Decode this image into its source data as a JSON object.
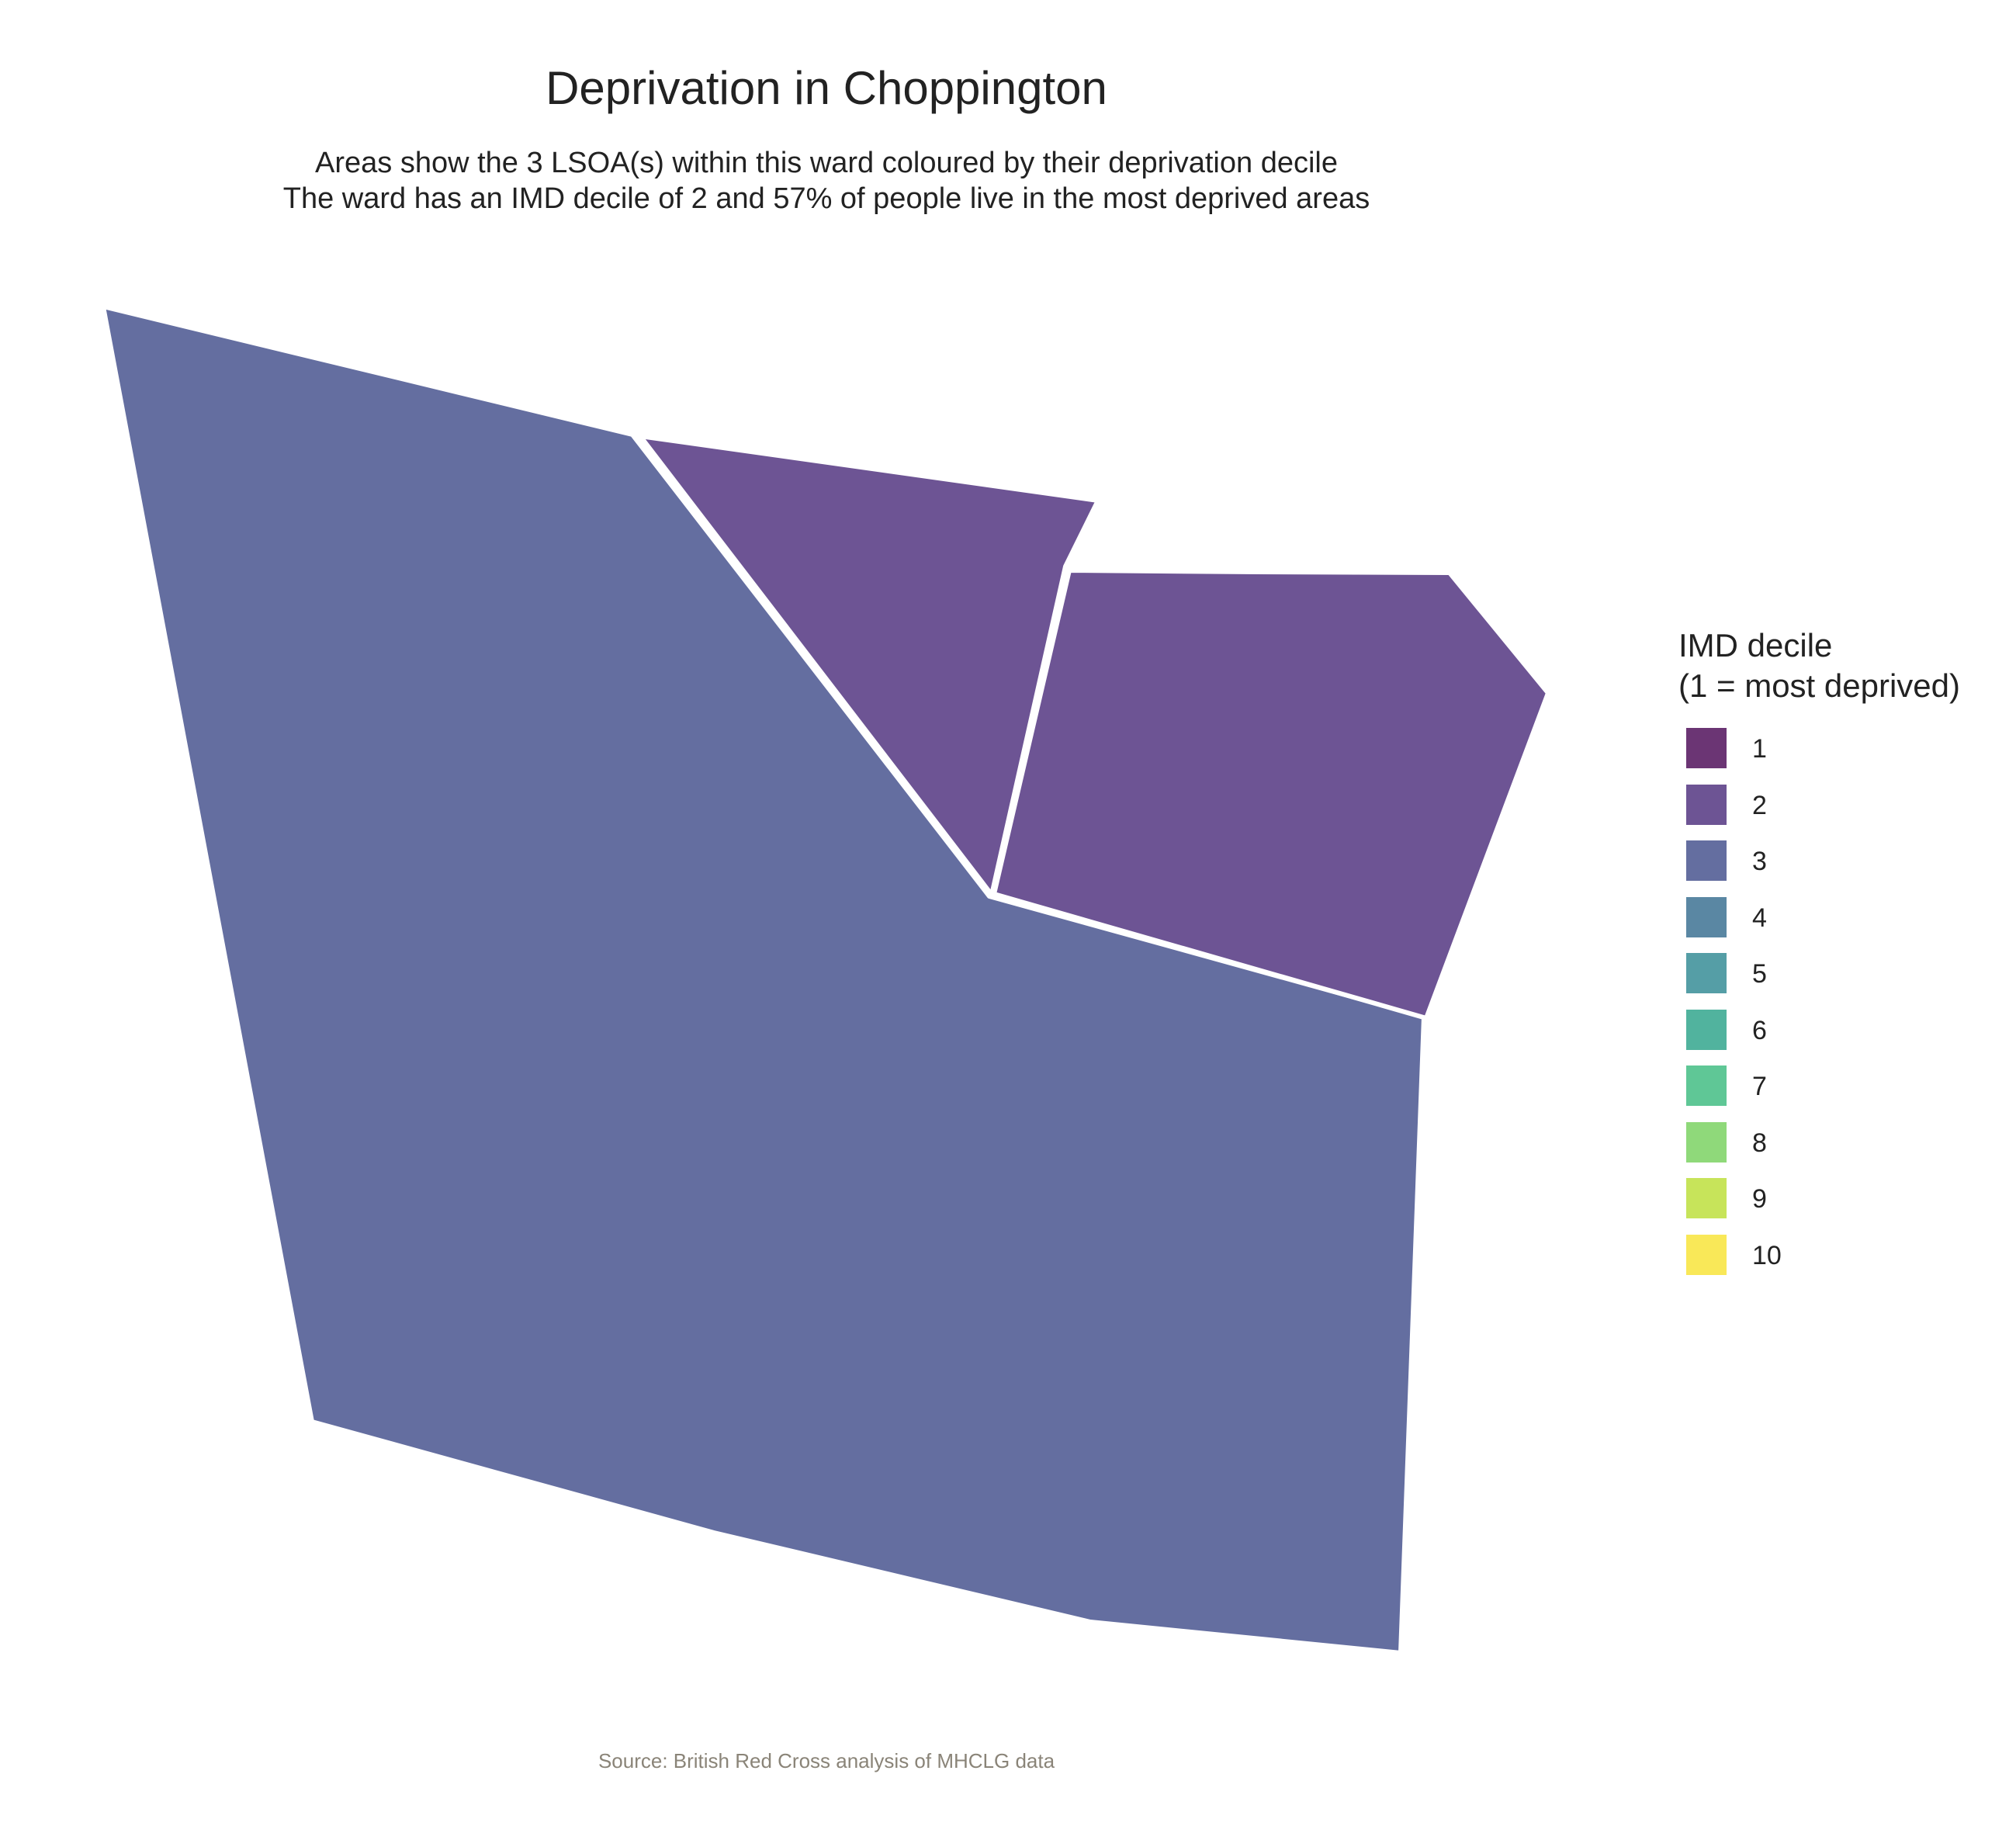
{
  "title": "Deprivation in Choppington",
  "subtitle": {
    "line1": "Areas show the 3 LSOA(s) within this ward coloured by their deprivation decile",
    "line2": "The ward has an IMD decile of 2 and 57% of people live in the most deprived areas"
  },
  "map": {
    "areas": [
      {
        "imd_decile": 3,
        "color": "#646ea0"
      },
      {
        "imd_decile": 2,
        "color": "#6d5494"
      },
      {
        "imd_decile": 2,
        "color": "#6d5494"
      }
    ],
    "border_color": "#ffffff"
  },
  "legend": {
    "title_line1": "IMD decile",
    "title_line2": "(1 = most deprived)",
    "items": [
      {
        "label": "1",
        "color": "#6b3574"
      },
      {
        "label": "2",
        "color": "#6d5494"
      },
      {
        "label": "3",
        "color": "#646ea0"
      },
      {
        "label": "4",
        "color": "#5a87a3"
      },
      {
        "label": "5",
        "color": "#559ea6"
      },
      {
        "label": "6",
        "color": "#51b39e"
      },
      {
        "label": "7",
        "color": "#5fc796"
      },
      {
        "label": "8",
        "color": "#8fd97a"
      },
      {
        "label": "9",
        "color": "#c7e45a"
      },
      {
        "label": "10",
        "color": "#f9e858"
      }
    ]
  },
  "caption": "Source: British Red Cross analysis of MHCLG data"
}
